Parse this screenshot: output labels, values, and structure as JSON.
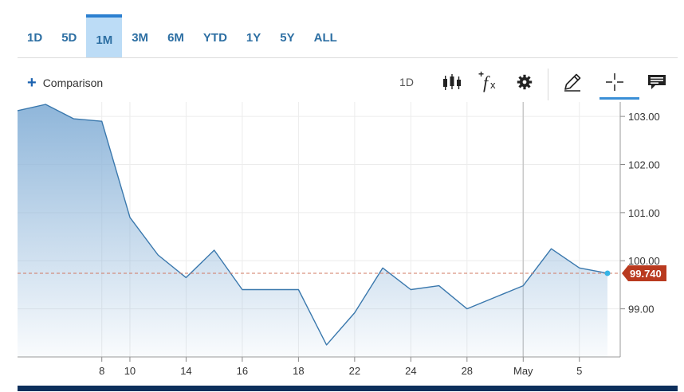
{
  "range_tabs": [
    {
      "label": "1D",
      "active": false
    },
    {
      "label": "5D",
      "active": false
    },
    {
      "label": "1M",
      "active": true
    },
    {
      "label": "3M",
      "active": false
    },
    {
      "label": "6M",
      "active": false
    },
    {
      "label": "YTD",
      "active": false
    },
    {
      "label": "1Y",
      "active": false
    },
    {
      "label": "5Y",
      "active": false
    },
    {
      "label": "ALL",
      "active": false
    }
  ],
  "toolbar": {
    "comparison_label": "Comparison",
    "interval_label": "1D",
    "icons": [
      "plus-icon",
      "candlestick-icon",
      "function-icon",
      "gear-icon",
      "pencil-icon",
      "crosshair-icon",
      "news-icon"
    ]
  },
  "colors": {
    "accent": "#2b7fd0",
    "line": "#3a78ad",
    "area_top": "#8fb6da",
    "last_price_badge": "#b93a1f",
    "last_point": "#35b4e6"
  },
  "chart_data": {
    "type": "area",
    "x_ticks": [
      "8",
      "10",
      "14",
      "16",
      "18",
      "22",
      "24",
      "28",
      "May",
      "5"
    ],
    "x": [
      0,
      1,
      2,
      3,
      4,
      5,
      6,
      7,
      8,
      9,
      10,
      11,
      12,
      13,
      14,
      15,
      16,
      17,
      18,
      19,
      20,
      21
    ],
    "y": [
      103.12,
      103.25,
      102.95,
      102.9,
      100.9,
      100.12,
      99.65,
      100.22,
      99.4,
      99.4,
      99.4,
      98.25,
      98.92,
      99.85,
      99.4,
      99.48,
      99.0,
      99.24,
      99.48,
      100.25,
      99.85,
      99.74
    ],
    "y_ticks": [
      "103.00",
      "102.00",
      "101.00",
      "100.00",
      "99.00"
    ],
    "y_tick_values": [
      103,
      102,
      101,
      100,
      99
    ],
    "ylim": [
      98.0,
      103.3
    ],
    "last_value": 99.74,
    "last_value_label": "99.740",
    "grid": true,
    "y_axis_side": "right"
  }
}
